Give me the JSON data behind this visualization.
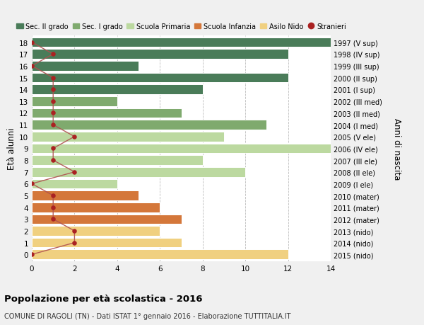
{
  "ages": [
    18,
    17,
    16,
    15,
    14,
    13,
    12,
    11,
    10,
    9,
    8,
    7,
    6,
    5,
    4,
    3,
    2,
    1,
    0
  ],
  "years": [
    "1997 (V sup)",
    "1998 (IV sup)",
    "1999 (III sup)",
    "2000 (II sup)",
    "2001 (I sup)",
    "2002 (III med)",
    "2003 (II med)",
    "2004 (I med)",
    "2005 (V ele)",
    "2006 (IV ele)",
    "2007 (III ele)",
    "2008 (II ele)",
    "2009 (I ele)",
    "2010 (mater)",
    "2011 (mater)",
    "2012 (mater)",
    "2013 (nido)",
    "2014 (nido)",
    "2015 (nido)"
  ],
  "values": [
    14,
    12,
    5,
    12,
    8,
    4,
    7,
    11,
    9,
    14,
    8,
    10,
    4,
    5,
    6,
    7,
    6,
    7,
    12
  ],
  "stranieri": [
    0,
    1,
    0,
    1,
    1,
    1,
    1,
    1,
    2,
    1,
    1,
    2,
    0,
    1,
    1,
    1,
    2,
    2,
    0
  ],
  "bar_colors": [
    "#4a7c59",
    "#4a7c59",
    "#4a7c59",
    "#4a7c59",
    "#4a7c59",
    "#7faa6e",
    "#7faa6e",
    "#7faa6e",
    "#bcd9a0",
    "#bcd9a0",
    "#bcd9a0",
    "#bcd9a0",
    "#bcd9a0",
    "#d4773a",
    "#d4773a",
    "#d4773a",
    "#f0d080",
    "#f0d080",
    "#f0d080"
  ],
  "stranieri_color": "#aa2222",
  "stranieri_line_color": "#b05050",
  "ylabel_left": "Età alunni",
  "ylabel_right": "Anni di nascita",
  "xlim": [
    0,
    14
  ],
  "xticks": [
    0,
    2,
    4,
    6,
    8,
    10,
    12,
    14
  ],
  "title": "Popolazione per età scolastica - 2016",
  "subtitle": "COMUNE DI RAGOLI (TN) - Dati ISTAT 1° gennaio 2016 - Elaborazione TUTTITALIA.IT",
  "legend_items": [
    {
      "label": "Sec. II grado",
      "color": "#4a7c59",
      "type": "patch"
    },
    {
      "label": "Sec. I grado",
      "color": "#7faa6e",
      "type": "patch"
    },
    {
      "label": "Scuola Primaria",
      "color": "#bcd9a0",
      "type": "patch"
    },
    {
      "label": "Scuola Infanzia",
      "color": "#d4773a",
      "type": "patch"
    },
    {
      "label": "Asilo Nido",
      "color": "#f0d080",
      "type": "patch"
    },
    {
      "label": "Stranieri",
      "color": "#aa2222",
      "type": "dot"
    }
  ],
  "bg_color": "#f0f0f0",
  "plot_bg": "#ffffff",
  "grid_color": "#bbbbbb"
}
